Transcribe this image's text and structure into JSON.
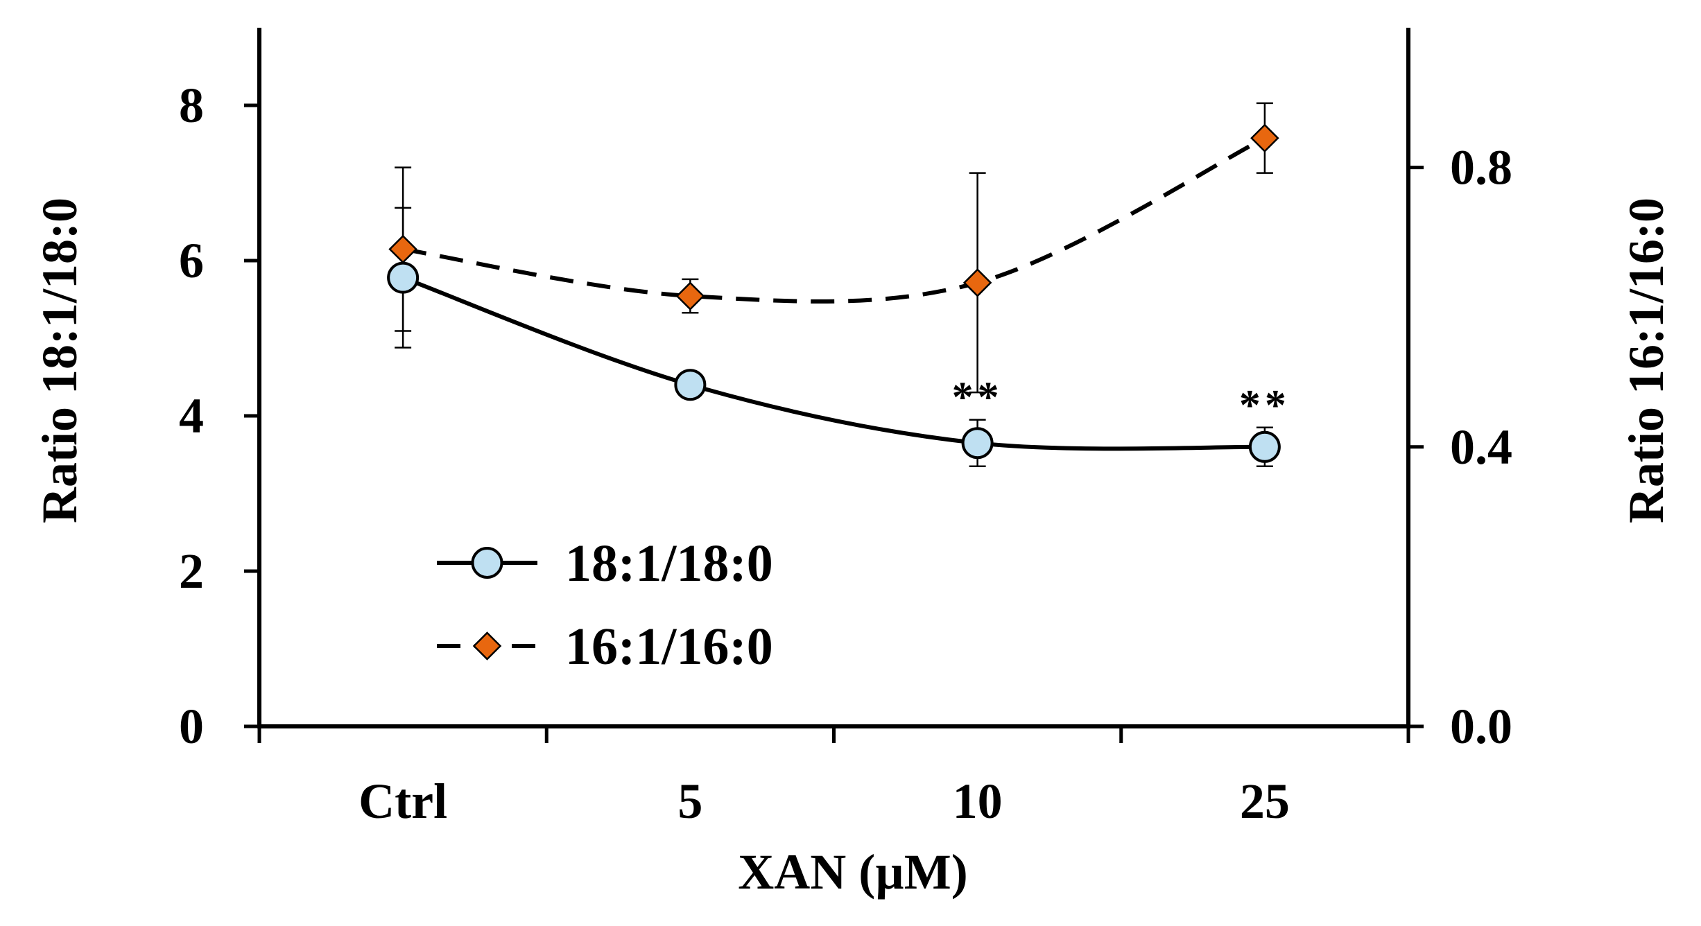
{
  "chart_data": {
    "type": "line",
    "title": "",
    "xlabel": "XAN (µM)",
    "ylabel_left": "Ratio 18:1/18:0",
    "ylabel_right": "Ratio 16:1/16:0",
    "categories": [
      "Ctrl",
      "5",
      "10",
      "25"
    ],
    "ylim_left": [
      0,
      9
    ],
    "ylim_right": [
      0.0,
      1.0
    ],
    "yticks_left": [
      0,
      2,
      4,
      6,
      8
    ],
    "yticks_left_labels": [
      "0",
      "2",
      "4",
      "6",
      "8"
    ],
    "yticks_right": [
      0.0,
      0.4,
      0.8
    ],
    "yticks_right_labels": [
      "0.0",
      "0.4",
      "0.8"
    ],
    "grid": false,
    "legend_position": "bottom-left",
    "series": [
      {
        "name": "18:1/18:0",
        "axis": "left",
        "line_style": "solid",
        "marker": "circle",
        "marker_color": "#bfe0f2",
        "values": [
          5.78,
          4.4,
          3.65,
          3.6
        ],
        "errors": [
          0.9,
          0.0,
          0.3,
          0.25
        ],
        "significance": [
          "",
          "",
          "**",
          "**"
        ]
      },
      {
        "name": "16:1/16:0",
        "axis": "right",
        "line_style": "dashed",
        "marker": "diamond",
        "marker_color": "#e8670f",
        "values": [
          0.683,
          0.616,
          0.635,
          0.842
        ],
        "errors": [
          0.117,
          0.024,
          0.157,
          0.05
        ]
      }
    ]
  }
}
